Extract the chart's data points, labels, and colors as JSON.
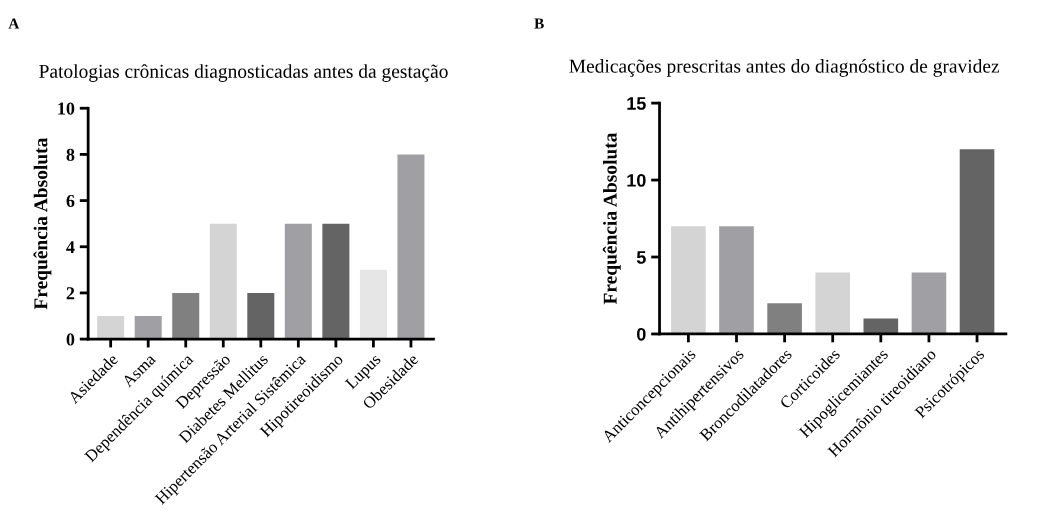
{
  "chart_data": [
    {
      "type": "bar",
      "title": "Patologias crônicas diagnosticadas antes da gestação",
      "ylabel": "Frequência Absoluta",
      "annotations": [
        "A"
      ],
      "categories": [
        "Asiedade",
        "Asma",
        "Dependência química",
        "Depressão",
        "Diabetes Mellitus",
        "Hipertensão Arterial Sistêmica",
        "Hipotireoidismo",
        "Lupus",
        "Obesidade"
      ],
      "values": [
        1,
        1,
        2,
        5,
        2,
        5,
        5,
        3,
        8
      ],
      "colors": [
        "#d4d4d4",
        "#a0a0a4",
        "#808080",
        "#d4d4d4",
        "#646464",
        "#a0a0a4",
        "#646464",
        "#e6e6e6",
        "#a0a0a4"
      ],
      "ylim": [
        0,
        10
      ],
      "yticks": [
        0,
        2,
        4,
        6,
        8,
        10
      ],
      "grid": false,
      "legend": false
    },
    {
      "type": "bar",
      "title": "Medicações prescritas antes do diagnóstico de gravidez",
      "ylabel": "Frequência Absoluta",
      "annotations": [
        "B"
      ],
      "categories": [
        "Anticoncepcionais",
        "Antihipertensivos",
        "Broncodilatadores",
        "Corticoides",
        "Hipoglicemiantes",
        "Hormônio tireoidiano",
        "Psicotrópicos"
      ],
      "values": [
        7,
        7,
        2,
        4,
        1,
        4,
        12
      ],
      "colors": [
        "#d4d4d4",
        "#a0a0a4",
        "#808080",
        "#d4d4d4",
        "#646464",
        "#a0a0a4",
        "#646464"
      ],
      "ylim": [
        0,
        15
      ],
      "yticks": [
        0,
        5,
        10,
        15
      ],
      "grid": false,
      "legend": false
    }
  ]
}
